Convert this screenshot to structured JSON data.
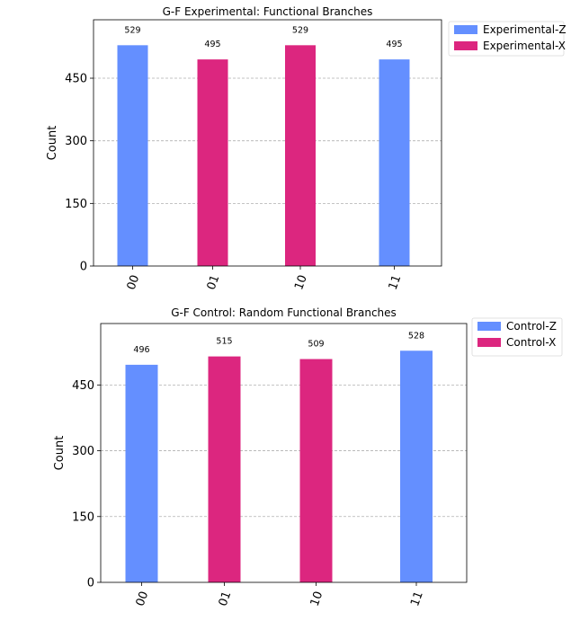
{
  "chart_data": [
    {
      "type": "bar",
      "title": "G-F Experimental: Functional Branches",
      "ylabel": "Count",
      "xlabel": "",
      "categories": [
        "00",
        "01",
        "10",
        "11"
      ],
      "ylim": [
        0,
        590
      ],
      "yticks": [
        0,
        150,
        300,
        450
      ],
      "grid": true,
      "legend_placement": "outside-top-right",
      "series": [
        {
          "name": "Experimental-Z",
          "color": "#648fff",
          "values": [
            529,
            null,
            null,
            495
          ]
        },
        {
          "name": "Experimental-X",
          "color": "#dc267f",
          "values": [
            null,
            495,
            529,
            null
          ]
        }
      ]
    },
    {
      "type": "bar",
      "title": "G-F Control: Random Functional Branches",
      "ylabel": "Count",
      "xlabel": "",
      "categories": [
        "00",
        "01",
        "10",
        "11"
      ],
      "ylim": [
        0,
        590
      ],
      "yticks": [
        0,
        150,
        300,
        450
      ],
      "grid": true,
      "legend_placement": "outside-top-right",
      "series": [
        {
          "name": "Control-Z",
          "color": "#648fff",
          "values": [
            496,
            null,
            null,
            528
          ]
        },
        {
          "name": "Control-X",
          "color": "#dc267f",
          "values": [
            null,
            515,
            509,
            null
          ]
        }
      ]
    }
  ]
}
